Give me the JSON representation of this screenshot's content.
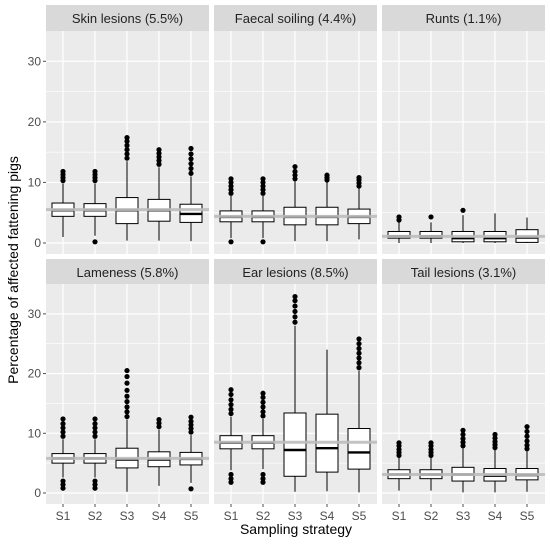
{
  "chart_data": {
    "type": "boxplot",
    "layout": "facets-2x3",
    "xlabel": "Sampling strategy",
    "ylabel": "Percentage of affected fattening pigs",
    "ylim": [
      0,
      35
    ],
    "yticks": [
      0,
      10,
      20,
      30
    ],
    "categories": [
      "S1",
      "S2",
      "S3",
      "S4",
      "S5"
    ],
    "grid": true,
    "colors": {
      "panel_background": "#ebebeb",
      "strip_background": "#d9d9d9",
      "grid_line": "#ffffff",
      "reference_line": "#bdbdbd",
      "box_fill": "#ffffff",
      "box_line": "#000000"
    },
    "facets": [
      {
        "title": "Skin lesions (5.5%)",
        "reference": 5.5,
        "boxes": [
          {
            "q1": 4.4,
            "median": 5.4,
            "q3": 6.6,
            "lower": 1.0,
            "upper": 9.8,
            "outliers_low": [],
            "outliers_high": [
              10.3,
              10.8,
              11.3,
              11.8
            ]
          },
          {
            "q1": 4.4,
            "median": 5.4,
            "q3": 6.5,
            "lower": 1.2,
            "upper": 9.8,
            "outliers_low": [
              0.2
            ],
            "outliers_high": [
              10.3,
              10.8,
              11.3,
              11.8
            ]
          },
          {
            "q1": 3.2,
            "median": 5.4,
            "q3": 7.5,
            "lower": 0.4,
            "upper": 13.5,
            "outliers_low": [],
            "outliers_high": [
              14.0,
              14.7,
              15.4,
              16.1,
              16.8,
              17.4
            ]
          },
          {
            "q1": 3.6,
            "median": 5.4,
            "q3": 7.2,
            "lower": 0.4,
            "upper": 12.5,
            "outliers_low": [],
            "outliers_high": [
              13.0,
              13.6,
              14.2,
              14.8,
              15.4
            ]
          },
          {
            "q1": 3.4,
            "median": 4.8,
            "q3": 6.4,
            "lower": 0.3,
            "upper": 11.0,
            "outliers_low": [],
            "outliers_high": [
              11.5,
              12.3,
              13.1,
              13.9,
              14.7,
              15.6
            ]
          }
        ]
      },
      {
        "title": "Faecal soiling (4.4%)",
        "reference": 4.4,
        "boxes": [
          {
            "q1": 3.5,
            "median": 4.3,
            "q3": 5.3,
            "lower": 0.8,
            "upper": 7.8,
            "outliers_low": [
              0.2
            ],
            "outliers_high": [
              8.2,
              8.8,
              9.4,
              10.0,
              10.6
            ]
          },
          {
            "q1": 3.5,
            "median": 4.3,
            "q3": 5.3,
            "lower": 0.8,
            "upper": 7.8,
            "outliers_low": [
              0.2
            ],
            "outliers_high": [
              8.2,
              8.8,
              9.4,
              10.0,
              10.6
            ]
          },
          {
            "q1": 3.0,
            "median": 4.3,
            "q3": 5.9,
            "lower": 0.3,
            "upper": 10.2,
            "outliers_low": [],
            "outliers_high": [
              10.6,
              11.2,
              11.8,
              12.6
            ]
          },
          {
            "q1": 3.0,
            "median": 4.3,
            "q3": 5.9,
            "lower": 0.3,
            "upper": 10.0,
            "outliers_low": [],
            "outliers_high": [
              10.4,
              10.8,
              11.2
            ]
          },
          {
            "q1": 3.2,
            "median": 4.3,
            "q3": 5.6,
            "lower": 0.6,
            "upper": 9.0,
            "outliers_low": [],
            "outliers_high": [
              9.4,
              9.9,
              10.4,
              10.8
            ]
          }
        ]
      },
      {
        "title": "Runts (1.1%)",
        "reference": 1.1,
        "boxes": [
          {
            "q1": 0.8,
            "median": 1.1,
            "q3": 1.9,
            "lower": 0.0,
            "upper": 3.4,
            "outliers_low": [],
            "outliers_high": [
              3.8,
              4.3
            ]
          },
          {
            "q1": 0.8,
            "median": 1.1,
            "q3": 1.9,
            "lower": 0.0,
            "upper": 3.4,
            "outliers_low": [],
            "outliers_high": [
              4.3
            ]
          },
          {
            "q1": 0.2,
            "median": 0.8,
            "q3": 1.9,
            "lower": 0.0,
            "upper": 4.6,
            "outliers_low": [],
            "outliers_high": [
              5.4
            ]
          },
          {
            "q1": 0.2,
            "median": 0.8,
            "q3": 1.9,
            "lower": 0.0,
            "upper": 4.9,
            "outliers_low": [],
            "outliers_high": []
          },
          {
            "q1": 0.1,
            "median": 0.9,
            "q3": 2.2,
            "lower": 0.0,
            "upper": 4.2,
            "outliers_low": [],
            "outliers_high": []
          }
        ]
      },
      {
        "title": "Lameness (5.8%)",
        "reference": 5.8,
        "boxes": [
          {
            "q1": 5.0,
            "median": 5.8,
            "q3": 6.6,
            "lower": 2.6,
            "upper": 9.0,
            "outliers_low": [
              0.8,
              1.4,
              2.0
            ],
            "outliers_high": [
              9.5,
              10.2,
              10.9,
              11.6,
              12.4
            ]
          },
          {
            "q1": 5.0,
            "median": 5.8,
            "q3": 6.6,
            "lower": 2.6,
            "upper": 9.0,
            "outliers_low": [
              0.8,
              1.4,
              2.0
            ],
            "outliers_high": [
              9.5,
              10.2,
              10.9,
              11.6,
              12.4
            ]
          },
          {
            "q1": 4.2,
            "median": 5.6,
            "q3": 7.5,
            "lower": 0.2,
            "upper": 12.3,
            "outliers_low": [],
            "outliers_high": [
              12.8,
              13.6,
              14.4,
              15.3,
              16.2,
              17.2,
              18.4,
              19.5,
              20.5
            ]
          },
          {
            "q1": 4.4,
            "median": 5.6,
            "q3": 6.9,
            "lower": 1.2,
            "upper": 10.6,
            "outliers_low": [],
            "outliers_high": [
              11.1,
              11.7,
              12.3
            ]
          },
          {
            "q1": 4.7,
            "median": 5.7,
            "q3": 6.8,
            "lower": 1.7,
            "upper": 9.7,
            "outliers_low": [
              0.7
            ],
            "outliers_high": [
              10.2,
              10.8,
              11.4,
              12.0,
              12.7
            ]
          }
        ]
      },
      {
        "title": "Ear lesions (8.5%)",
        "reference": 8.5,
        "boxes": [
          {
            "q1": 7.4,
            "median": 8.4,
            "q3": 9.6,
            "lower": 3.8,
            "upper": 12.8,
            "outliers_low": [
              1.8,
              2.4,
              3.1
            ],
            "outliers_high": [
              13.3,
              14.0,
              14.8,
              15.6,
              16.5,
              17.3
            ]
          },
          {
            "q1": 7.4,
            "median": 8.4,
            "q3": 9.6,
            "lower": 4.0,
            "upper": 12.4,
            "outliers_low": [
              1.8,
              2.4,
              3.1
            ],
            "outliers_high": [
              12.9,
              13.6,
              14.4,
              15.2,
              16.0,
              16.7
            ]
          },
          {
            "q1": 2.8,
            "median": 7.2,
            "q3": 13.4,
            "lower": 0.2,
            "upper": 28.0,
            "outliers_low": [],
            "outliers_high": [
              28.6,
              29.5,
              30.4,
              31.3,
              32.2,
              32.9
            ]
          },
          {
            "q1": 3.5,
            "median": 7.5,
            "q3": 13.2,
            "lower": 0.3,
            "upper": 24.0,
            "outliers_low": [],
            "outliers_high": []
          },
          {
            "q1": 4.0,
            "median": 6.8,
            "q3": 10.8,
            "lower": 0.1,
            "upper": 20.5,
            "outliers_low": [],
            "outliers_high": [
              21.0,
              21.8,
              22.6,
              23.4,
              24.2,
              25.0,
              25.8
            ]
          }
        ]
      },
      {
        "title": "Tail lesions (3.1%)",
        "reference": 3.1,
        "boxes": [
          {
            "q1": 2.4,
            "median": 3.1,
            "q3": 3.9,
            "lower": 0.4,
            "upper": 5.9,
            "outliers_low": [],
            "outliers_high": [
              6.3,
              6.8,
              7.3,
              7.9,
              8.4
            ]
          },
          {
            "q1": 2.4,
            "median": 3.1,
            "q3": 3.9,
            "lower": 0.4,
            "upper": 5.9,
            "outliers_low": [],
            "outliers_high": [
              6.3,
              6.8,
              7.3,
              7.9,
              8.4
            ]
          },
          {
            "q1": 2.0,
            "median": 3.1,
            "q3": 4.3,
            "lower": 0.1,
            "upper": 7.5,
            "outliers_low": [],
            "outliers_high": [
              7.9,
              8.5,
              9.1,
              9.8,
              10.5
            ]
          },
          {
            "q1": 2.0,
            "median": 2.9,
            "q3": 4.1,
            "lower": 0.1,
            "upper": 7.2,
            "outliers_low": [],
            "outliers_high": [
              7.6,
              8.1,
              8.6,
              9.2,
              9.8
            ]
          },
          {
            "q1": 2.2,
            "median": 3.0,
            "q3": 4.1,
            "lower": 0.2,
            "upper": 7.0,
            "outliers_low": [],
            "outliers_high": [
              7.4,
              8.0,
              8.7,
              9.5,
              10.3,
              11.1
            ]
          }
        ]
      }
    ]
  }
}
